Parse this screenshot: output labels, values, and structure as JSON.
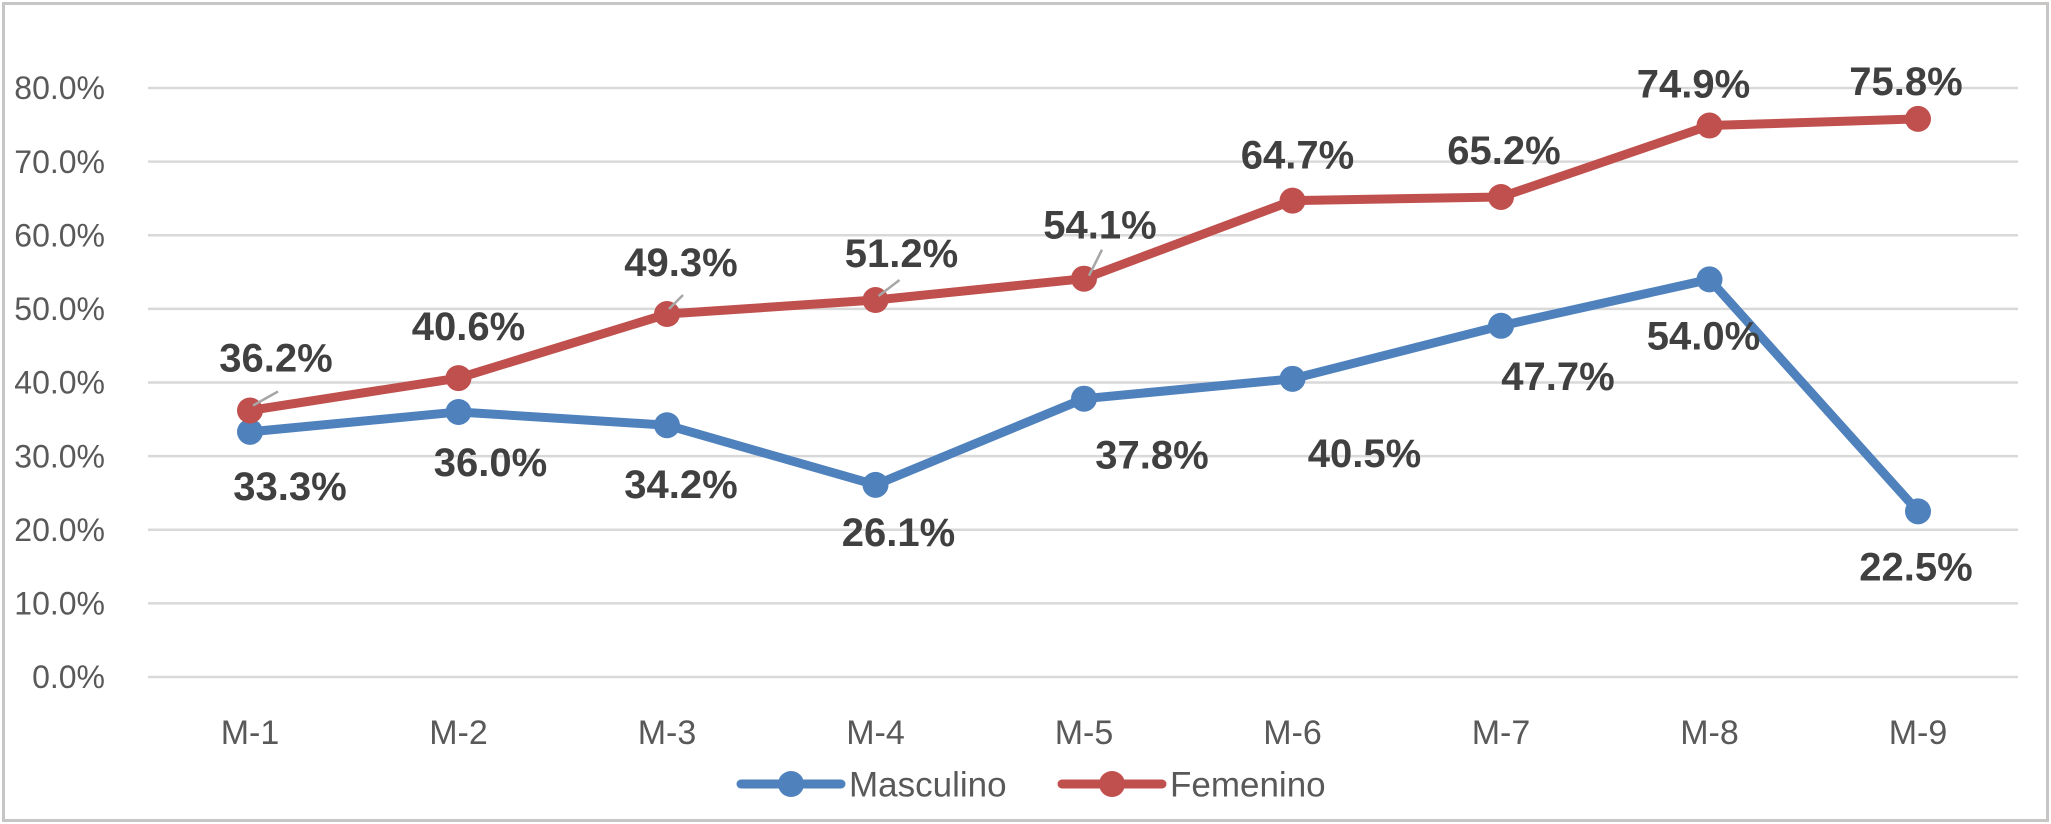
{
  "chart_data": {
    "type": "line",
    "title": "",
    "xlabel": "",
    "ylabel": "",
    "categories": [
      "M-1",
      "M-2",
      "M-3",
      "M-4",
      "M-5",
      "M-6",
      "M-7",
      "M-8",
      "M-9"
    ],
    "series": [
      {
        "name": "Masculino",
        "color": "#4F81BD",
        "values": [
          33.3,
          36.0,
          34.2,
          26.1,
          37.8,
          40.5,
          47.7,
          54.0,
          22.5
        ],
        "labels": [
          "33.3%",
          "36.0%",
          "34.2%",
          "26.1%",
          "37.8%",
          "40.5%",
          "47.7%",
          "54.0%",
          "22.5%"
        ],
        "label_offsets": [
          [
            40,
            54
          ],
          [
            32,
            50
          ],
          [
            14,
            59
          ],
          [
            23,
            47
          ],
          [
            68,
            56
          ],
          [
            72,
            74
          ],
          [
            57,
            50
          ],
          [
            -6,
            56
          ],
          [
            -2,
            55
          ]
        ],
        "leader_lines": []
      },
      {
        "name": "Femenino",
        "color": "#C0504D",
        "values": [
          36.2,
          40.6,
          49.3,
          51.2,
          54.1,
          64.7,
          65.2,
          74.9,
          75.8
        ],
        "labels": [
          "36.2%",
          "40.6%",
          "49.3%",
          "51.2%",
          "54.1%",
          "64.7%",
          "65.2%",
          "74.9%",
          "75.8%"
        ],
        "label_offsets": [
          [
            26,
            -53
          ],
          [
            10,
            -52
          ],
          [
            14,
            -52
          ],
          [
            26,
            -47
          ],
          [
            16,
            -54
          ],
          [
            5,
            -46
          ],
          [
            3,
            -47
          ],
          [
            -16,
            -42
          ],
          [
            -12,
            -38
          ]
        ],
        "leader_lines": [
          {
            "index": 0,
            "from": [
              3,
              -5
            ],
            "to": [
              28,
              -19
            ]
          },
          {
            "index": 2,
            "from": [
              2,
              -5
            ],
            "to": [
              16,
              -19
            ]
          },
          {
            "index": 3,
            "from": [
              3,
              -4
            ],
            "to": [
              24,
              -20
            ]
          },
          {
            "index": 4,
            "from": [
              5,
              -3
            ],
            "to": [
              18,
              -29
            ]
          }
        ]
      }
    ],
    "y_ticks": [
      "0.0%",
      "10.0%",
      "20.0%",
      "30.0%",
      "40.0%",
      "50.0%",
      "60.0%",
      "70.0%",
      "80.0%"
    ],
    "ylim": [
      0,
      80
    ],
    "grid": true,
    "legend_position": "bottom",
    "colors": {
      "grid": "#D9D9D9",
      "axis_text": "#595959",
      "data_label_text": "#404040",
      "leader_line": "#A6A6A6",
      "frame_border": "#C8C6C4",
      "background": "#FFFFFF"
    }
  }
}
